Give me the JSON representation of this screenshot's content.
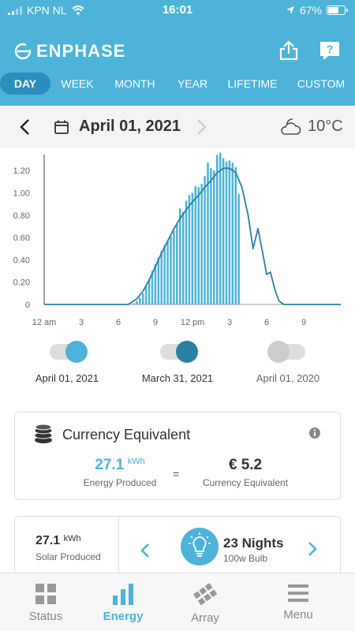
{
  "status_bar": {
    "carrier": "KPN NL",
    "time": "16:01",
    "battery": "67%",
    "battery_level": 0.67
  },
  "header": {
    "brand": "ENPHASE"
  },
  "tabs": [
    {
      "label": "DAY",
      "active": true
    },
    {
      "label": "WEEK"
    },
    {
      "label": "MONTH"
    },
    {
      "label": "YEAR"
    },
    {
      "label": "LIFETIME"
    },
    {
      "label": "CUSTOM"
    }
  ],
  "date_bar": {
    "date": "April 01, 2021",
    "temperature": "10°C",
    "weather_icon": "partly-cloudy-icon"
  },
  "chart_data": {
    "type": "bar",
    "ylim": [
      0,
      1.3
    ],
    "yticks": [
      "0",
      "0.20",
      "0.40",
      "0.60",
      "0.80",
      "1.00",
      "1.20"
    ],
    "ytick_values": [
      0,
      0.2,
      0.4,
      0.6,
      0.8,
      1.0,
      1.2
    ],
    "xlim": [
      0,
      24
    ],
    "xticks": [
      "12 am",
      "3",
      "6",
      "9",
      "12 pm",
      "3",
      "6",
      "9"
    ],
    "xtick_values": [
      0,
      3,
      6,
      9,
      12,
      15,
      18,
      21
    ],
    "series": [
      {
        "type": "bar",
        "color": "#4db3d9",
        "x": [
          7.25,
          7.5,
          7.75,
          8.0,
          8.25,
          8.5,
          8.75,
          9.0,
          9.25,
          9.5,
          9.75,
          10.0,
          10.25,
          10.5,
          10.75,
          11.0,
          11.25,
          11.5,
          11.75,
          12.0,
          12.25,
          12.5,
          12.75,
          13.0,
          13.25,
          13.5,
          13.75,
          14.0,
          14.25,
          14.5,
          14.75,
          15.0,
          15.25,
          15.5,
          15.75
        ],
        "values": [
          0.01,
          0.03,
          0.06,
          0.1,
          0.16,
          0.23,
          0.3,
          0.36,
          0.42,
          0.48,
          0.53,
          0.57,
          0.61,
          0.66,
          0.72,
          0.86,
          0.83,
          0.93,
          0.98,
          1.0,
          1.06,
          1.05,
          1.08,
          1.15,
          1.27,
          1.22,
          1.2,
          1.34,
          1.36,
          1.31,
          1.28,
          1.29,
          1.27,
          1.23,
          0.99
        ]
      },
      {
        "type": "line",
        "color": "#2a7fa3",
        "x": [
          0,
          6.8,
          7.5,
          8.0,
          8.5,
          9.0,
          9.5,
          10.0,
          10.5,
          11.0,
          11.5,
          12.0,
          12.5,
          13.0,
          13.5,
          14.0,
          14.5,
          15.0,
          15.5,
          16.0,
          16.5,
          16.9,
          17.3,
          17.7,
          18.0,
          18.3,
          18.7,
          19.0,
          19.4,
          24
        ],
        "values": [
          0,
          0,
          0.05,
          0.12,
          0.22,
          0.34,
          0.46,
          0.57,
          0.68,
          0.77,
          0.85,
          0.92,
          0.98,
          1.05,
          1.11,
          1.18,
          1.22,
          1.22,
          1.18,
          1.05,
          0.8,
          0.5,
          0.68,
          0.45,
          0.27,
          0.29,
          0.12,
          0.03,
          0,
          0
        ]
      }
    ]
  },
  "comparisons": [
    {
      "label": "April 01, 2021",
      "on": true,
      "color": "#4db3d9"
    },
    {
      "label": "March 31, 2021",
      "on": true,
      "color": "#2a7fa3"
    },
    {
      "label": "April 01, 2020",
      "on": false,
      "color": "#cccccc"
    }
  ],
  "currency_card": {
    "title": "Currency Equivalent",
    "energy_value": "27.1",
    "energy_unit": "kWh",
    "energy_label": "Energy Produced",
    "equals": "=",
    "currency_value": "€ 5.2",
    "currency_label": "Currency Equivalent"
  },
  "equivalent_card": {
    "solar_value": "27.1",
    "solar_unit": "kWh",
    "solar_label": "Solar Produced",
    "equivalent_value": "23 Nights",
    "equivalent_label": "100w Bulb"
  },
  "bottom_nav": [
    {
      "label": "Status",
      "icon": "grid-icon"
    },
    {
      "label": "Energy",
      "icon": "bar-chart-icon",
      "active": true
    },
    {
      "label": "Array",
      "icon": "solar-panel-icon"
    },
    {
      "label": "Menu",
      "icon": "hamburger-icon"
    }
  ]
}
